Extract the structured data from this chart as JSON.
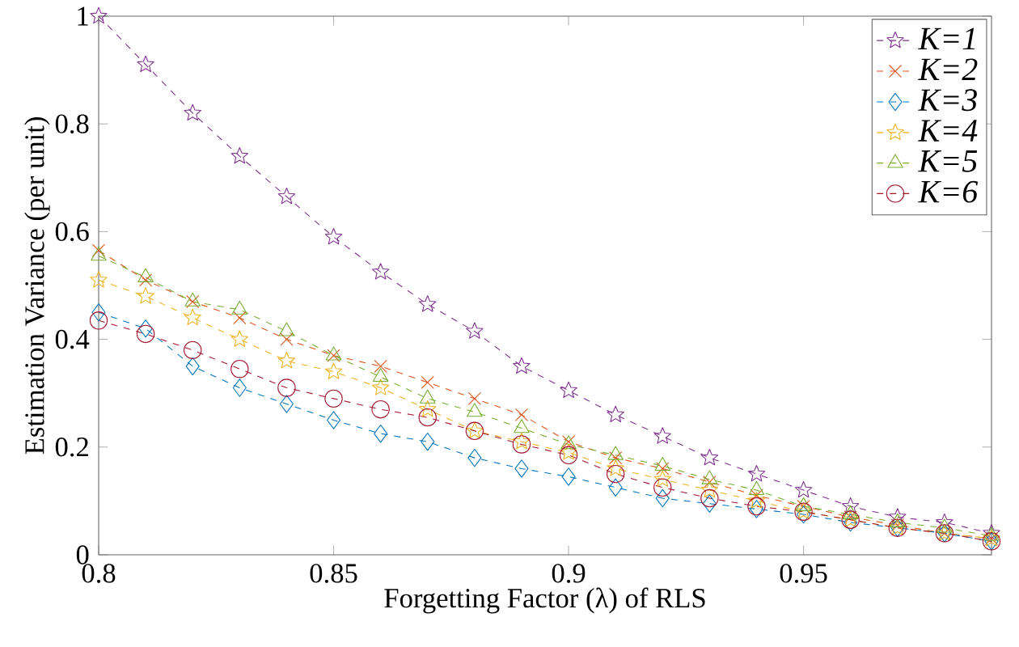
{
  "chart_data": {
    "type": "line",
    "xlabel": "Forgetting Factor (λ) of RLS",
    "ylabel": "Estimation Variance (per unit)",
    "x": [
      0.8,
      0.81,
      0.82,
      0.83,
      0.84,
      0.85,
      0.86,
      0.87,
      0.88,
      0.89,
      0.9,
      0.91,
      0.92,
      0.93,
      0.94,
      0.95,
      0.96,
      0.97,
      0.98,
      0.99
    ],
    "series": [
      {
        "name": "K=1",
        "color": "#7e2f8e",
        "marker": "star",
        "values": [
          1.0,
          0.91,
          0.82,
          0.74,
          0.665,
          0.59,
          0.525,
          0.465,
          0.415,
          0.35,
          0.305,
          0.26,
          0.22,
          0.18,
          0.15,
          0.12,
          0.09,
          0.07,
          0.06,
          0.04
        ]
      },
      {
        "name": "K=2",
        "color": "#d95319",
        "marker": "cross",
        "values": [
          0.565,
          0.51,
          0.47,
          0.44,
          0.4,
          0.37,
          0.35,
          0.32,
          0.29,
          0.26,
          0.21,
          0.18,
          0.16,
          0.135,
          0.11,
          0.09,
          0.07,
          0.055,
          0.04,
          0.03
        ]
      },
      {
        "name": "K=3",
        "color": "#0072bd",
        "marker": "diamond",
        "values": [
          0.45,
          0.42,
          0.35,
          0.31,
          0.28,
          0.25,
          0.225,
          0.21,
          0.18,
          0.16,
          0.145,
          0.125,
          0.105,
          0.095,
          0.085,
          0.075,
          0.06,
          0.05,
          0.04,
          0.025
        ]
      },
      {
        "name": "K=4",
        "color": "#edb120",
        "marker": "star",
        "values": [
          0.51,
          0.48,
          0.44,
          0.4,
          0.36,
          0.34,
          0.31,
          0.27,
          0.23,
          0.21,
          0.19,
          0.16,
          0.14,
          0.12,
          0.1,
          0.08,
          0.065,
          0.05,
          0.04,
          0.03
        ]
      },
      {
        "name": "K=5",
        "color": "#77ac30",
        "marker": "triangle",
        "values": [
          0.555,
          0.515,
          0.47,
          0.455,
          0.415,
          0.37,
          0.33,
          0.29,
          0.265,
          0.235,
          0.205,
          0.185,
          0.165,
          0.14,
          0.12,
          0.09,
          0.075,
          0.06,
          0.05,
          0.035
        ]
      },
      {
        "name": "K=6",
        "color": "#a2142f",
        "marker": "circle",
        "values": [
          0.435,
          0.41,
          0.38,
          0.345,
          0.31,
          0.29,
          0.27,
          0.255,
          0.23,
          0.205,
          0.185,
          0.15,
          0.125,
          0.105,
          0.09,
          0.08,
          0.065,
          0.05,
          0.04,
          0.025
        ]
      }
    ],
    "xlim": [
      0.8,
      0.99
    ],
    "ylim": [
      0,
      1
    ],
    "xticks": [
      0.8,
      0.85,
      0.9,
      0.95
    ],
    "yticks": [
      0,
      0.2,
      0.4,
      0.6,
      0.8,
      1
    ],
    "line_style": "dashed",
    "legend": "top right",
    "grid": false
  }
}
